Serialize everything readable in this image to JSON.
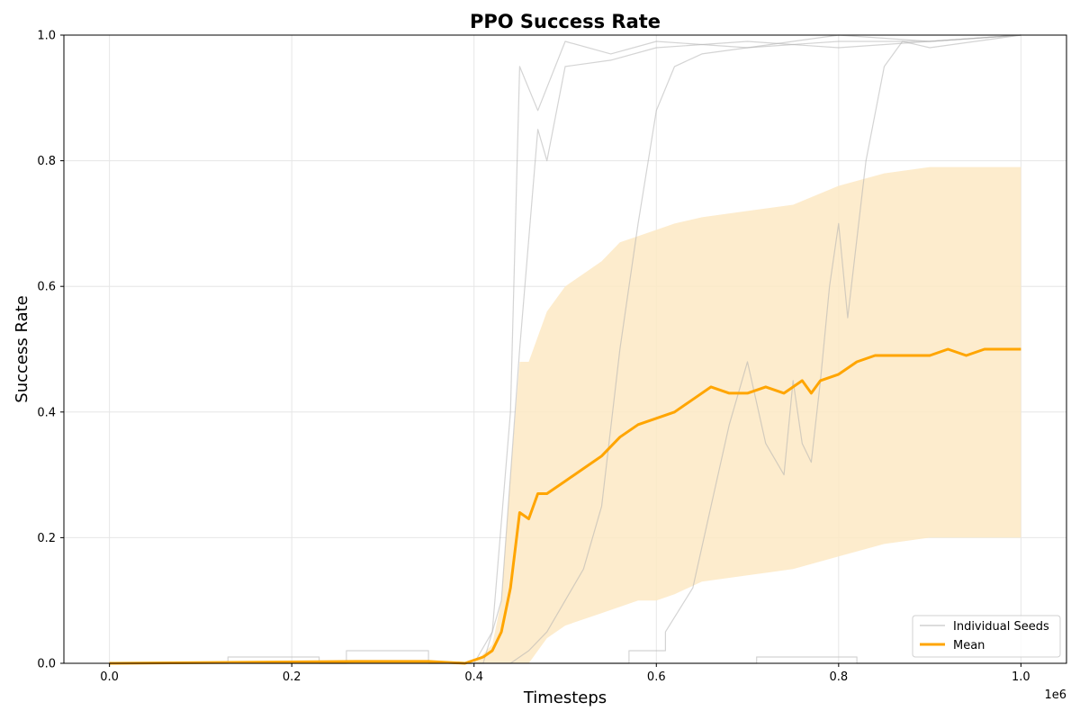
{
  "chart_data": {
    "type": "line",
    "title": "PPO Success Rate",
    "xlabel": "Timesteps",
    "ylabel": "Success Rate",
    "x_scale_label": "1e6",
    "xlim": [
      -0.05,
      1.05
    ],
    "ylim": [
      0.0,
      1.0
    ],
    "grid": true,
    "legend_position": "bottom-right",
    "xticks": [
      0.0,
      0.2,
      0.4,
      0.6,
      0.8,
      1.0
    ],
    "xtick_labels": [
      "0.0",
      "0.2",
      "0.4",
      "0.6",
      "0.8",
      "1.0"
    ],
    "yticks": [
      0.0,
      0.2,
      0.4,
      0.6,
      0.8,
      1.0
    ],
    "ytick_labels": [
      "0.0",
      "0.2",
      "0.4",
      "0.6",
      "0.8",
      "1.0"
    ],
    "colors": {
      "seed": "#b0b0b0",
      "mean": "#ffa500",
      "band": "#fde9c4"
    },
    "series": [
      {
        "name": "Individual Seeds",
        "kind": "seed",
        "x": [
          0,
          0.13,
          0.13,
          0.23,
          0.23,
          0.4,
          0.42,
          0.44,
          0.45,
          0.47,
          0.5,
          0.55,
          0.6,
          0.7,
          0.8,
          0.9,
          1.0
        ],
        "y": [
          0,
          0,
          0.01,
          0.01,
          0,
          0,
          0.05,
          0.4,
          0.95,
          0.88,
          0.99,
          0.97,
          0.99,
          0.98,
          1.0,
          0.99,
          1.0
        ]
      },
      {
        "name": "",
        "kind": "seed",
        "x": [
          0,
          0.26,
          0.26,
          0.35,
          0.35,
          0.41,
          0.43,
          0.45,
          0.47,
          0.48,
          0.5,
          0.55,
          0.6,
          0.7,
          0.8,
          0.9,
          1.0
        ],
        "y": [
          0,
          0,
          0.02,
          0.02,
          0,
          0,
          0.1,
          0.5,
          0.85,
          0.8,
          0.95,
          0.96,
          0.98,
          0.99,
          0.98,
          0.99,
          1.0
        ]
      },
      {
        "name": "",
        "kind": "seed",
        "x": [
          0,
          0.44,
          0.46,
          0.48,
          0.5,
          0.52,
          0.54,
          0.56,
          0.58,
          0.6,
          0.62,
          0.65,
          0.7,
          0.8,
          0.9,
          1.0
        ],
        "y": [
          0,
          0,
          0.02,
          0.05,
          0.1,
          0.15,
          0.25,
          0.5,
          0.7,
          0.88,
          0.95,
          0.97,
          0.98,
          0.99,
          0.99,
          1.0
        ]
      },
      {
        "name": "",
        "kind": "seed",
        "x": [
          0,
          0.57,
          0.57,
          0.61,
          0.61,
          0.64,
          0.66,
          0.68,
          0.7,
          0.72,
          0.74,
          0.75,
          0.76,
          0.77,
          0.78,
          0.79,
          0.8,
          0.81,
          0.83,
          0.85,
          0.87,
          0.9,
          1.0
        ],
        "y": [
          0,
          0,
          0.02,
          0.02,
          0.05,
          0.12,
          0.25,
          0.38,
          0.48,
          0.35,
          0.3,
          0.45,
          0.35,
          0.32,
          0.45,
          0.6,
          0.7,
          0.55,
          0.8,
          0.95,
          0.99,
          0.98,
          1.0
        ]
      },
      {
        "name": "",
        "kind": "seed",
        "x": [
          0,
          0.71,
          0.71,
          0.82,
          0.82,
          1.0
        ],
        "y": [
          0,
          0,
          0.01,
          0.01,
          0,
          0
        ]
      },
      {
        "name": "Mean",
        "kind": "mean",
        "x": [
          0,
          0.27,
          0.35,
          0.39,
          0.41,
          0.42,
          0.43,
          0.44,
          0.445,
          0.45,
          0.46,
          0.47,
          0.48,
          0.5,
          0.52,
          0.54,
          0.56,
          0.58,
          0.6,
          0.62,
          0.64,
          0.66,
          0.68,
          0.7,
          0.72,
          0.74,
          0.76,
          0.77,
          0.78,
          0.8,
          0.82,
          0.84,
          0.86,
          0.88,
          0.9,
          0.92,
          0.94,
          0.96,
          0.98,
          1.0
        ],
        "y": [
          0,
          0.003,
          0.003,
          0,
          0.01,
          0.02,
          0.05,
          0.12,
          0.18,
          0.24,
          0.23,
          0.27,
          0.27,
          0.29,
          0.31,
          0.33,
          0.36,
          0.38,
          0.39,
          0.4,
          0.42,
          0.44,
          0.43,
          0.43,
          0.44,
          0.43,
          0.45,
          0.43,
          0.45,
          0.46,
          0.48,
          0.49,
          0.49,
          0.49,
          0.49,
          0.5,
          0.49,
          0.5,
          0.5,
          0.5
        ]
      }
    ],
    "band": {
      "x": [
        0,
        0.4,
        0.42,
        0.43,
        0.44,
        0.45,
        0.46,
        0.47,
        0.48,
        0.5,
        0.52,
        0.54,
        0.56,
        0.58,
        0.6,
        0.62,
        0.65,
        0.7,
        0.75,
        0.8,
        0.85,
        0.9,
        0.95,
        1.0
      ],
      "upper": [
        0,
        0,
        0.03,
        0.1,
        0.3,
        0.48,
        0.48,
        0.52,
        0.56,
        0.6,
        0.62,
        0.64,
        0.67,
        0.68,
        0.69,
        0.7,
        0.71,
        0.72,
        0.73,
        0.76,
        0.78,
        0.79,
        0.79,
        0.79
      ],
      "lower": [
        0,
        0,
        0,
        0,
        0,
        0,
        0,
        0.02,
        0.04,
        0.06,
        0.07,
        0.08,
        0.09,
        0.1,
        0.1,
        0.11,
        0.13,
        0.14,
        0.15,
        0.17,
        0.19,
        0.2,
        0.2,
        0.2
      ]
    }
  }
}
